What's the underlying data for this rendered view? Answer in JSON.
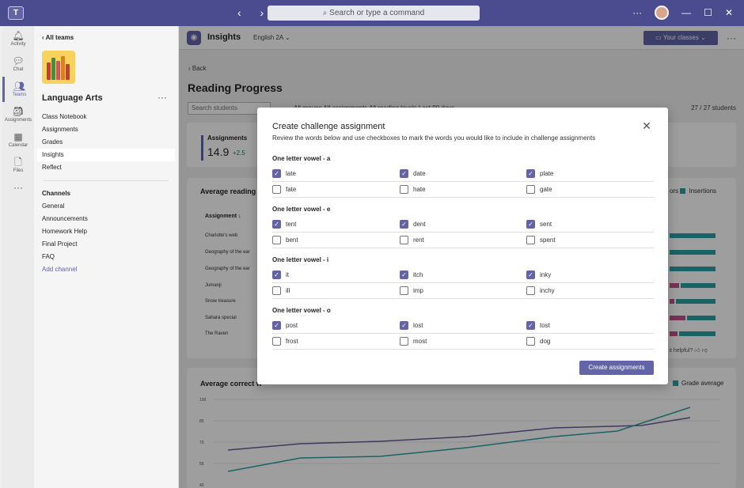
{
  "titlebar": {
    "search_placeholder": "Search or type a command",
    "nav_arrows": "‹  ›",
    "logo_text": "T",
    "more": "···"
  },
  "rail": {
    "items": [
      {
        "label": "Activity",
        "icon": "bell-icon"
      },
      {
        "label": "Chat",
        "icon": "chat-icon"
      },
      {
        "label": "Teams",
        "icon": "teams-icon"
      },
      {
        "label": "Assignments",
        "icon": "assignments-icon"
      },
      {
        "label": "Calendar",
        "icon": "calendar-icon"
      },
      {
        "label": "Files",
        "icon": "files-icon"
      }
    ],
    "more": "···"
  },
  "sidepanel": {
    "all_teams": "All teams",
    "team_name": "Language Arts",
    "team_more": "···",
    "nav": [
      "Class Notebook",
      "Assignments",
      "Grades",
      "Insights",
      "Reflect"
    ],
    "channels_title": "Channels",
    "channels": [
      "General",
      "Announcements",
      "Homework Help",
      "Final Project",
      "FAQ"
    ],
    "add_channel": "Add channel"
  },
  "app": {
    "title": "Insights",
    "class_name": "English 2A",
    "your_classes": "Your classes",
    "back": "Back",
    "page_title": "Reading Progress",
    "search_students": "Search students",
    "filters": "All groups    All assignments    All reading levels    Last 90 days",
    "student_count": "27 / 27 students",
    "metric_label": "Assignments",
    "metric_value": "14.9",
    "metric_delta": "+2.5",
    "avg_reading": "Average reading a",
    "legend_errors": "ors",
    "legend_insertions": "Insertions",
    "table_header": "Assignment",
    "rows": [
      "Charlotte's web",
      "Geography of the ear",
      "Geography of the ear",
      "Jumanji",
      "Snow treasure",
      "Sahara special",
      "The Raven"
    ],
    "helpful": "Is it helpful?",
    "wpm_title": "Average correct w",
    "wpm_legend": "Grade average",
    "y_ticks": [
      "100",
      "85",
      "70",
      "55",
      "40"
    ]
  },
  "modal": {
    "title": "Create challenge assignment",
    "description": "Review the words below and use checkboxes to mark the words you would like to include in challenge assignments",
    "groups": [
      {
        "title": "One letter vowel - a",
        "words": [
          {
            "word": "late",
            "checked": true
          },
          {
            "word": "date",
            "checked": true
          },
          {
            "word": "plate",
            "checked": true
          },
          {
            "word": "fate",
            "checked": false
          },
          {
            "word": "hate",
            "checked": false
          },
          {
            "word": "gate",
            "checked": false
          }
        ]
      },
      {
        "title": "One letter vowel - e",
        "words": [
          {
            "word": "tent",
            "checked": true
          },
          {
            "word": "dent",
            "checked": true
          },
          {
            "word": "sent",
            "checked": true
          },
          {
            "word": "bent",
            "checked": false
          },
          {
            "word": "rent",
            "checked": false
          },
          {
            "word": "spent",
            "checked": false
          }
        ]
      },
      {
        "title": "One letter vowel - i",
        "words": [
          {
            "word": "it",
            "checked": true
          },
          {
            "word": "itch",
            "checked": true
          },
          {
            "word": "inky",
            "checked": true
          },
          {
            "word": "ill",
            "checked": false
          },
          {
            "word": "imp",
            "checked": false
          },
          {
            "word": "inchy",
            "checked": false
          }
        ]
      },
      {
        "title": "One letter vowel - o",
        "words": [
          {
            "word": "post",
            "checked": true
          },
          {
            "word": "lost",
            "checked": true
          },
          {
            "word": "tost",
            "checked": true
          },
          {
            "word": "frost",
            "checked": false
          },
          {
            "word": "most",
            "checked": false
          },
          {
            "word": "dog",
            "checked": false
          }
        ]
      }
    ],
    "create_button": "Create assignments",
    "close_glyph": "✕"
  },
  "colors": {
    "accent": "#6264a7",
    "teal": "#2aa0a4",
    "pink": "#c4508a"
  }
}
